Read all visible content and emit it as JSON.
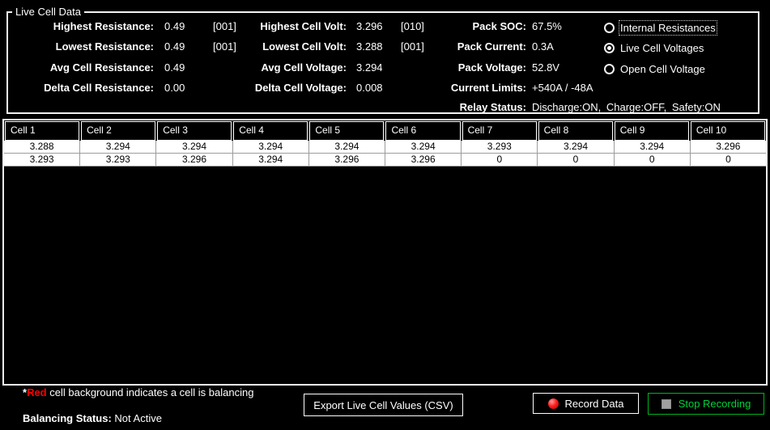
{
  "groupbox": {
    "title": "Live Cell Data",
    "resistance": {
      "highest_label": "Highest Resistance:",
      "highest_value": "0.49",
      "highest_cell": "[001]",
      "lowest_label": "Lowest Resistance:",
      "lowest_value": "0.49",
      "lowest_cell": "[001]",
      "avg_label": "Avg Cell Resistance:",
      "avg_value": "0.49",
      "delta_label": "Delta Cell Resistance:",
      "delta_value": "0.00"
    },
    "voltage": {
      "highest_label": "Highest Cell Volt:",
      "highest_value": "3.296",
      "highest_cell": "[010]",
      "lowest_label": "Lowest Cell Volt:",
      "lowest_value": "3.288",
      "lowest_cell": "[001]",
      "avg_label": "Avg Cell Voltage:",
      "avg_value": "3.294",
      "delta_label": "Delta Cell Voltage:",
      "delta_value": "0.008"
    },
    "pack": {
      "soc_label": "Pack SOC:",
      "soc_value": "67.5%",
      "current_label": "Pack Current:",
      "current_value": "0.3A",
      "voltage_label": "Pack Voltage:",
      "voltage_value": "52.8V",
      "limits_label": "Current Limits:",
      "limits_value": "+540A / -48A",
      "relay_label": "Relay Status:",
      "relay_value": "Discharge:ON, Charge:OFF, Safety:ON"
    },
    "radios": [
      {
        "label": "Internal Resistances",
        "selected": false
      },
      {
        "label": "Live Cell Voltages",
        "selected": true
      },
      {
        "label": "Open Cell Voltage",
        "selected": false
      }
    ]
  },
  "table": {
    "headers": [
      "Cell 1",
      "Cell 2",
      "Cell 3",
      "Cell 4",
      "Cell 5",
      "Cell 6",
      "Cell 7",
      "Cell 8",
      "Cell 9",
      "Cell 10"
    ],
    "rows": [
      [
        "3.288",
        "3.294",
        "3.294",
        "3.294",
        "3.294",
        "3.294",
        "3.293",
        "3.294",
        "3.294",
        "3.296"
      ],
      [
        "3.293",
        "3.293",
        "3.296",
        "3.294",
        "3.296",
        "3.296",
        "0",
        "0",
        "0",
        "0"
      ]
    ]
  },
  "footer": {
    "note_star": "*",
    "note_red": "Red",
    "note_rest": " cell background indicates a cell is balancing",
    "balancing_label": "Balancing Status:",
    "balancing_value": " Not Active",
    "export_button": "Export Live Cell Values (CSV)",
    "record_button": "Record Data",
    "stop_button": "Stop Recording"
  },
  "colors": {
    "background": "#000000",
    "text": "#ffffff",
    "balancing_red": "#ff0000",
    "record_icon_red": "#e01010",
    "stop_green": "#00d23c",
    "grid_line_gray": "#9c9c9c"
  }
}
